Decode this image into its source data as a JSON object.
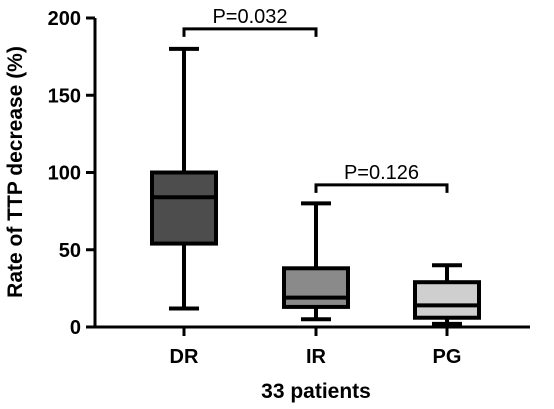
{
  "chart_data": {
    "type": "boxplot",
    "title": "",
    "xlabel": "33 patients",
    "ylabel": "Rate of TTP decrease (%)",
    "ylim": [
      0,
      200
    ],
    "yticks": [
      0,
      50,
      100,
      150,
      200
    ],
    "grid": false,
    "categories": [
      "DR",
      "IR",
      "PG"
    ],
    "boxes": [
      {
        "category": "DR",
        "min": 12,
        "q1": 54,
        "median": 84,
        "q3": 100,
        "max": 180,
        "color": "#4d4d4d"
      },
      {
        "category": "IR",
        "min": 5,
        "q1": 13,
        "median": 19,
        "q3": 38,
        "max": 80,
        "color": "#8a8a8a"
      },
      {
        "category": "PG",
        "min": 2,
        "q1": 6,
        "median": 14,
        "q3": 29,
        "max": 40,
        "color": "#cfcfcf"
      }
    ],
    "annotations": [
      {
        "from": "DR",
        "to": "IR",
        "label": "P=0.032",
        "y": 193
      },
      {
        "from": "IR",
        "to": "PG",
        "label": "P=0.126",
        "y": 92
      }
    ]
  }
}
